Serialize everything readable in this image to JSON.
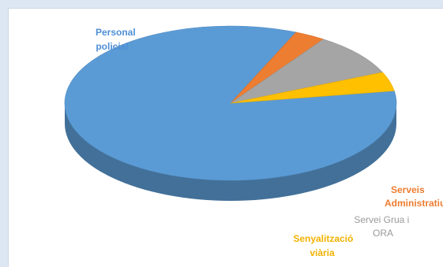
{
  "chart_data": {
    "type": "pie",
    "style": "3d",
    "legend": "none",
    "slices": [
      {
        "label": [
          "Personal",
          "policial"
        ],
        "value": 84.0,
        "color": "#5b9bd5",
        "label_color": "#4f8fd6"
      },
      {
        "label": [
          "Serveis",
          "Administratius"
        ],
        "value": 3.0,
        "color": "#ed7d31",
        "label_color": "#ed7d31"
      },
      {
        "label": [
          "Servei Grua i",
          "ORA"
        ],
        "value": 9.0,
        "color": "#a5a5a5",
        "label_color": "#9a9a9a"
      },
      {
        "label": [
          "Senyalització",
          "viària"
        ],
        "value": 4.0,
        "color": "#ffc000",
        "label_color": "#f2b200"
      }
    ]
  }
}
